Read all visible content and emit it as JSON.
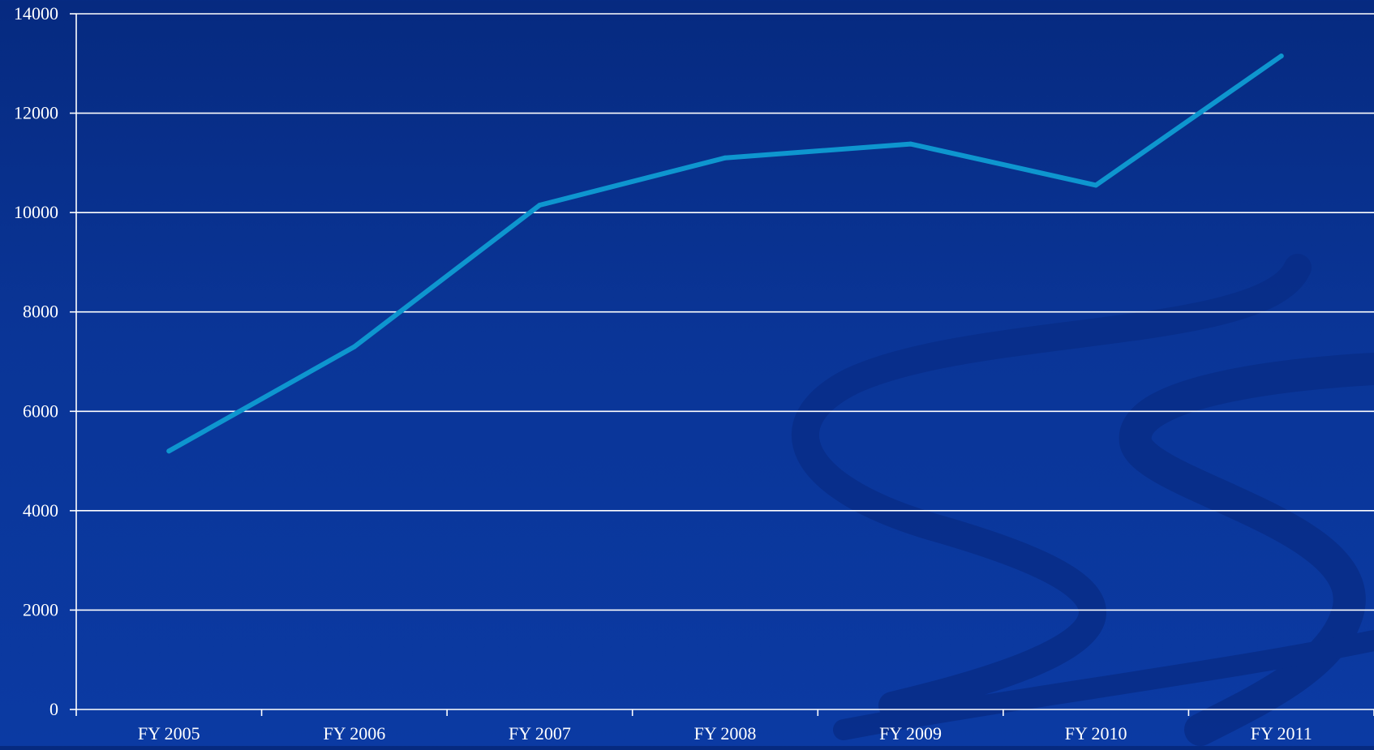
{
  "chart_data": {
    "type": "line",
    "title": "",
    "xlabel": "",
    "ylabel": "",
    "categories": [
      "FY 2005",
      "FY 2006",
      "FY 2007",
      "FY 2008",
      "FY 2009",
      "FY 2010",
      "FY 2011"
    ],
    "series": [
      {
        "values": [
          5200,
          7300,
          10150,
          11100,
          11380,
          10550,
          13150
        ]
      }
    ],
    "ylim": [
      0,
      14000
    ],
    "yticks": [
      "0",
      "2000",
      "4000",
      "6000",
      "8000",
      "10000",
      "12000",
      "14000"
    ],
    "grid": true,
    "legend": "none"
  },
  "colors": {
    "background": "#0a3597",
    "line": "#0e96cf",
    "axis": "#ffffff",
    "grid": "#ffffff",
    "text": "#ffffff",
    "swirl": "#082d88"
  }
}
